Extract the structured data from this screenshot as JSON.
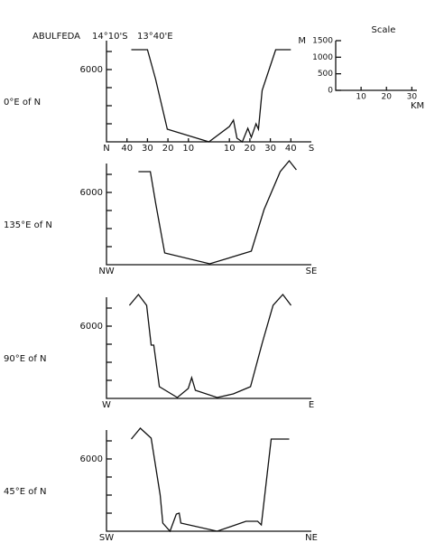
{
  "title": {
    "name": "ABULFEDA",
    "latitude": "14°10'S",
    "longitude": "13°40'E"
  },
  "chart_data": [
    {
      "type": "line",
      "label": "0°E of N",
      "direction_labels": [
        "N",
        "S"
      ],
      "color": "#111111",
      "xlim": [
        -50,
        50
      ],
      "ylim": [
        4000,
        7000
      ],
      "yticks": [
        6000
      ],
      "minor_yticks": [
        4500,
        5000,
        5500,
        6500
      ],
      "xticks": [
        {
          "value": -40,
          "label": "40"
        },
        {
          "value": -30,
          "label": "30"
        },
        {
          "value": -20,
          "label": "20"
        },
        {
          "value": -10,
          "label": "10"
        },
        10,
        20,
        30,
        40
      ],
      "x": [
        -37.9,
        -30,
        -26,
        -20.3,
        0,
        10,
        12,
        13.7,
        16.3,
        19,
        20.7,
        23,
        24.2,
        26,
        32.6,
        40
      ],
      "values": [
        6550,
        6550,
        5725,
        4350,
        4000,
        4425,
        4600,
        4100,
        4000,
        4375,
        4125,
        4500,
        4350,
        5425,
        6550,
        6550
      ]
    },
    {
      "type": "line",
      "label": "135°E of N",
      "direction_labels": [
        "NW",
        "SE"
      ],
      "color": "#111111",
      "xlim": [
        -50,
        50
      ],
      "ylim": [
        4000,
        7000
      ],
      "yticks": [
        6000
      ],
      "minor_yticks": [
        4500,
        5000,
        5500,
        6500
      ],
      "x": [
        -34.4,
        -28.6,
        -26,
        -21.6,
        0.4,
        20.7,
        26.9,
        34.8,
        39.2,
        42.7
      ],
      "values": [
        6575,
        6575,
        5700,
        4325,
        4025,
        4375,
        5525,
        6575,
        6875,
        6625
      ]
    },
    {
      "type": "line",
      "label": "90°E of N",
      "direction_labels": [
        "W",
        "E"
      ],
      "color": "#111111",
      "xlim": [
        -50,
        50
      ],
      "ylim": [
        4000,
        7000
      ],
      "yticks": [
        6000
      ],
      "minor_yticks": [
        4500,
        5000,
        5500,
        6500
      ],
      "x": [
        -38.8,
        -34.4,
        -30.4,
        -28.2,
        -26.9,
        -24.2,
        -15.4,
        -10.1,
        -8.4,
        -6.6,
        4,
        11.9,
        20.3,
        26,
        31.3,
        36.1,
        40.1
      ],
      "values": [
        6575,
        6875,
        6575,
        5475,
        5475,
        4325,
        4025,
        4275,
        4575,
        4225,
        4025,
        4125,
        4325,
        5525,
        6575,
        6875,
        6575
      ]
    },
    {
      "type": "line",
      "label": "45°E of N",
      "direction_labels": [
        "SW",
        "NE"
      ],
      "color": "#111111",
      "xlim": [
        -50,
        50
      ],
      "ylim": [
        4000,
        7000
      ],
      "yticks": [
        6000
      ],
      "minor_yticks": [
        4500,
        5000,
        5500,
        6500
      ],
      "x": [
        -37.9,
        -33.5,
        -28.2,
        -23.8,
        -22.5,
        -19,
        -15.9,
        -14.5,
        -13.7,
        4,
        18.1,
        23.8,
        25.6,
        30.4,
        39.2
      ],
      "values": [
        6550,
        6850,
        6575,
        5000,
        4225,
        4000,
        4475,
        4500,
        4225,
        4000,
        4275,
        4275,
        4175,
        6550,
        6550
      ]
    },
    {
      "type": "scale",
      "title": "Scale",
      "ylabel": "M",
      "xlabel": "KM",
      "xlim": [
        0,
        32
      ],
      "ylim": [
        0,
        1500
      ],
      "xticks": [
        10,
        20,
        30
      ],
      "yticks": [
        0,
        500,
        1000,
        1500
      ]
    }
  ]
}
